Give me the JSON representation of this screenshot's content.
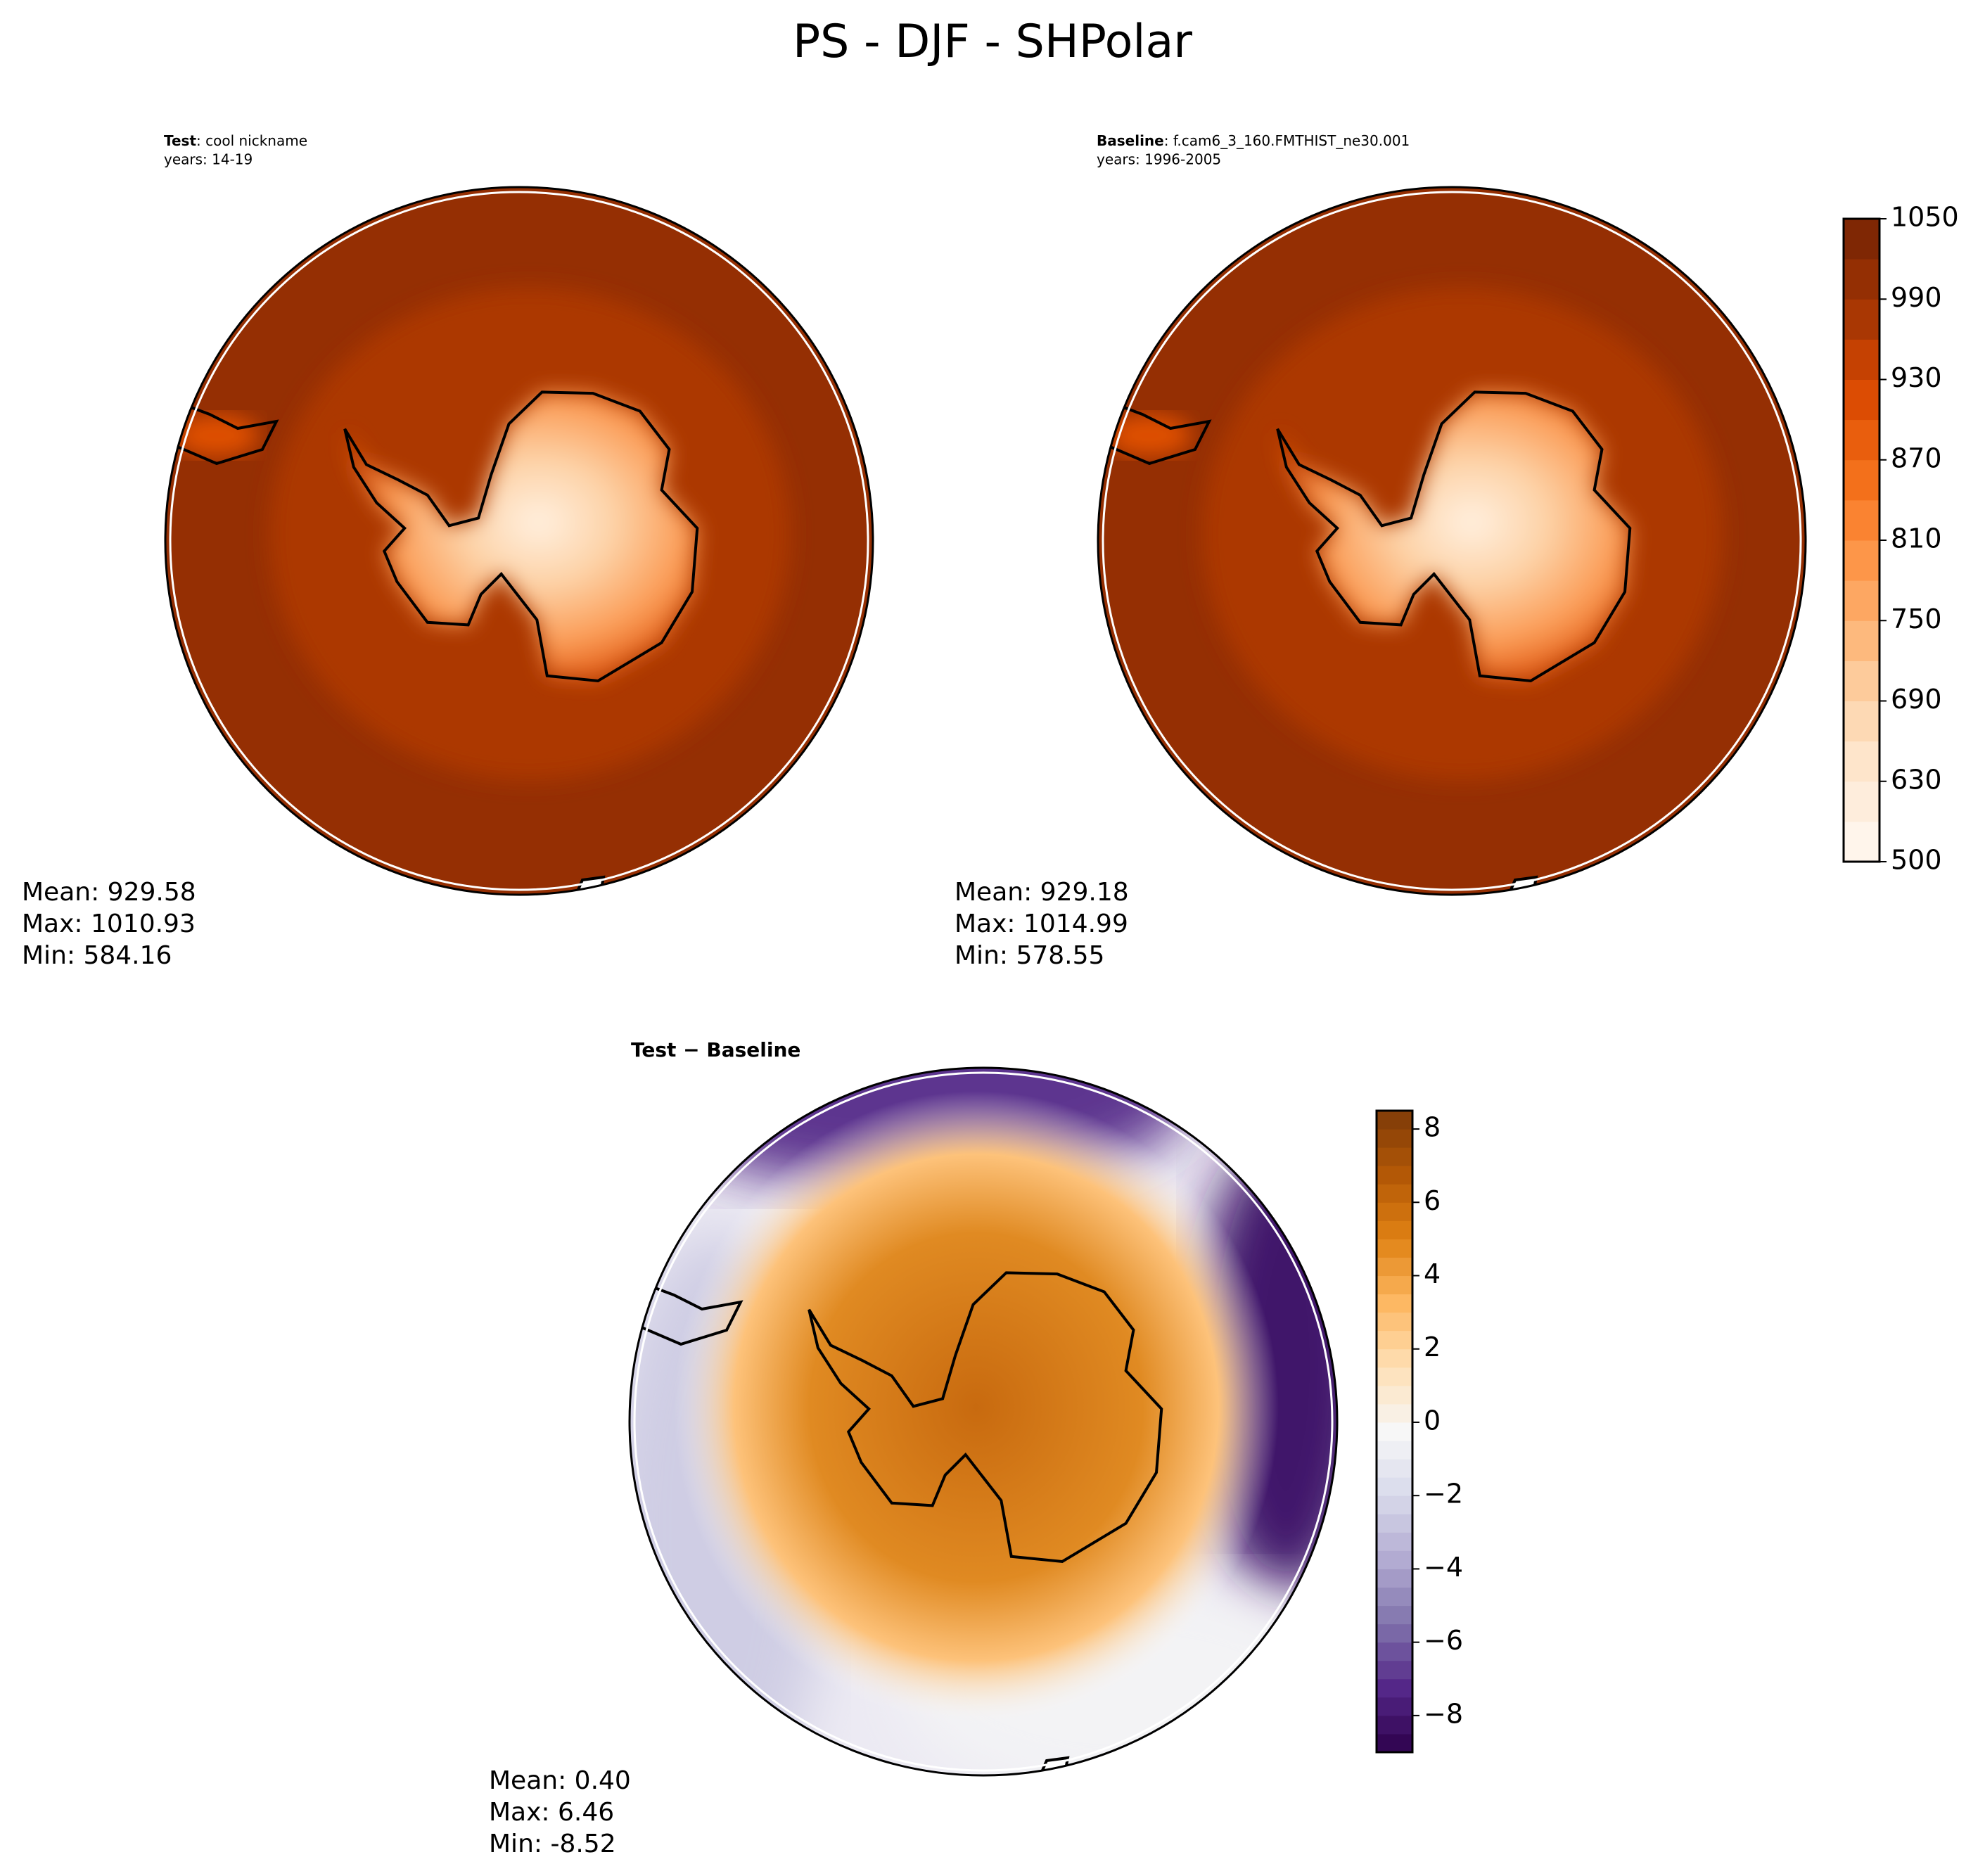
{
  "figure_title": "PS - DJF - SHPolar",
  "chart_data": [
    {
      "type": "map",
      "title_bold": "Test",
      "title_rest": ": cool nickname",
      "subtitle": "years: 14-19",
      "stats": [
        "Mean: 929.58",
        "Max: 1010.93",
        "Min: 584.16"
      ]
    },
    {
      "type": "map",
      "title_bold": "Baseline",
      "title_rest": ": f.cam6_3_160.FMTHIST_ne30.001",
      "subtitle": "years: 1996-2005",
      "stats": [
        "Mean: 929.18",
        "Max: 1014.99",
        "Min: 578.55"
      ],
      "colorbar": {
        "levels": [
          500,
          600,
          630,
          660,
          690,
          720,
          750,
          780,
          810,
          840,
          870,
          900,
          930,
          960,
          990,
          1020,
          1050
        ],
        "ticks": [
          500,
          630,
          690,
          750,
          810,
          870,
          930,
          990,
          1050
        ],
        "colors": [
          "#fff5eb",
          "#fee6ce",
          "#fdd0a2",
          "#fdae6b",
          "#fd8d3c",
          "#f16913",
          "#d94801",
          "#a63603",
          "#7f2704"
        ]
      }
    },
    {
      "type": "map",
      "title_bold": "Test − Baseline",
      "stats": [
        "Mean:  0.40",
        "Max:  6.46",
        "Min: -8.52"
      ],
      "colorbar": {
        "ylim": [
          -9,
          8.5
        ],
        "ticks": [
          {
            "value": -8,
            "label": "−8"
          },
          {
            "value": -6,
            "label": "−6"
          },
          {
            "value": -4,
            "label": "−4"
          },
          {
            "value": -2,
            "label": "−2"
          },
          0,
          2,
          4,
          6,
          8
        ],
        "colors": [
          "#2d004b",
          "#542788",
          "#8073ac",
          "#b2abd2",
          "#d8daeb",
          "#f7f7f7",
          "#fee0b6",
          "#fdb863",
          "#e08214",
          "#b35806",
          "#7f3b08"
        ]
      }
    }
  ]
}
